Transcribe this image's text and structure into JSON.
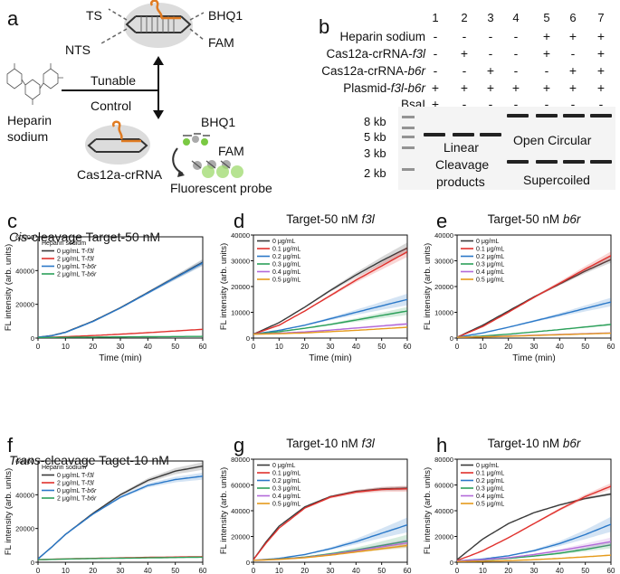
{
  "panel_a": {
    "letter": "a",
    "ts": "TS",
    "nts": "NTS",
    "bhq1_top": "BHQ1",
    "fam_top": "FAM",
    "heparin_line1": "Heparin",
    "heparin_line2": "sodium",
    "tunable": "Tunable",
    "control": "Control",
    "cas12a_label": "Cas12a-crRNA",
    "bhq1_bottom": "BHQ1",
    "fam_bottom": "FAM",
    "probe_label": "Fluorescent probe",
    "colors": {
      "crRNA": "#e07b22",
      "dna": "#333333",
      "fam": "#7ac943",
      "blob": "#dcdcdc"
    }
  },
  "panel_b": {
    "letter": "b",
    "lane_numbers": [
      "1",
      "2",
      "3",
      "4",
      "5",
      "6",
      "7"
    ],
    "rows": [
      {
        "label": "Heparin sodium",
        "italic": "",
        "marks": [
          "-",
          "-",
          "-",
          "-",
          "+",
          "+",
          "+"
        ]
      },
      {
        "label": "Cas12a-crRNA-",
        "italic": "f3l",
        "marks": [
          "-",
          "+",
          "-",
          "-",
          "+",
          "-",
          "+"
        ]
      },
      {
        "label": "Cas12a-crRNA-",
        "italic": "b6r",
        "marks": [
          "-",
          "-",
          "+",
          "-",
          "-",
          "+",
          "+"
        ]
      },
      {
        "label": "Plasmid-",
        "italic": "f3l-b6r",
        "marks": [
          "+",
          "+",
          "+",
          "+",
          "+",
          "+",
          "+"
        ]
      },
      {
        "label": "BsaI",
        "italic": "",
        "marks": [
          "+",
          "-",
          "-",
          "-",
          "-",
          "-",
          "-"
        ]
      }
    ],
    "ladder": [
      "8 kb",
      "5 kb",
      "3 kb",
      "2 kb"
    ],
    "gel_annotations": {
      "linear_1": "Linear",
      "linear_2": "Cleavage",
      "linear_3": "products",
      "open_circular": "Open Circular",
      "supercoiled": "Supercoiled"
    }
  },
  "chart_data": [
    {
      "panel": "c",
      "type": "line",
      "title_italic": "Cis",
      "title_rest": "-cleavage  Target-50 nM",
      "xlabel": "Time (min)",
      "ylabel": "FL intensity (arb. units)",
      "xlim": [
        0,
        60
      ],
      "ylim": [
        0,
        60000
      ],
      "xticks": [
        "0",
        "10",
        "20",
        "30",
        "40",
        "50",
        "60"
      ],
      "yticks": [
        "0",
        "20000",
        "40000",
        "60000"
      ],
      "legend_title": "Heparin sodium",
      "series": [
        {
          "name": "0 μg/mL T-",
          "italic": "f3l",
          "color": "#3a3a3a",
          "band": 0.04,
          "x": [
            0,
            5,
            10,
            20,
            30,
            40,
            50,
            60
          ],
          "values": [
            500,
            1500,
            3500,
            10000,
            18000,
            27000,
            36000,
            45000
          ]
        },
        {
          "name": "2 μg/mL T-",
          "italic": "f3l",
          "color": "#e0312d",
          "band": 0,
          "x": [
            0,
            10,
            20,
            30,
            40,
            50,
            60
          ],
          "values": [
            300,
            800,
            1500,
            2300,
            3200,
            4200,
            5200
          ]
        },
        {
          "name": "0 μg/mL T-",
          "italic": "b6r",
          "color": "#2a78c8",
          "band": 0.04,
          "x": [
            0,
            5,
            10,
            20,
            30,
            40,
            50,
            60
          ],
          "values": [
            500,
            1400,
            3300,
            9800,
            17800,
            26700,
            35700,
            44500
          ]
        },
        {
          "name": "2 μg/mL T-",
          "italic": "b6r",
          "color": "#2ca05a",
          "band": 0,
          "x": [
            0,
            10,
            20,
            30,
            40,
            50,
            60
          ],
          "values": [
            300,
            450,
            600,
            700,
            800,
            900,
            1000
          ]
        }
      ]
    },
    {
      "panel": "d",
      "type": "line",
      "title_italic": "",
      "title_pre": "Target-50 nM ",
      "title_tail": "f3l",
      "xlabel": "Time (min)",
      "ylabel": "FL intensity (arb. units)",
      "xlim": [
        0,
        60
      ],
      "ylim": [
        0,
        40000
      ],
      "xticks": [
        "0",
        "10",
        "20",
        "30",
        "40",
        "50",
        "60"
      ],
      "yticks": [
        "0",
        "10000",
        "20000",
        "30000",
        "40000"
      ],
      "legend_title": "",
      "series": [
        {
          "name": "0 μg/mL",
          "italic": "",
          "color": "#3a3a3a",
          "band": 0.06,
          "x": [
            0,
            10,
            20,
            30,
            40,
            50,
            60
          ],
          "values": [
            1500,
            6000,
            12000,
            18500,
            24500,
            30000,
            35000
          ]
        },
        {
          "name": "0.1 μg/mL",
          "italic": "",
          "color": "#e0312d",
          "band": 0.06,
          "x": [
            0,
            10,
            20,
            30,
            40,
            50,
            60
          ],
          "values": [
            1500,
            5000,
            10500,
            16500,
            22500,
            28000,
            33500
          ]
        },
        {
          "name": "0.2 μg/mL",
          "italic": "",
          "color": "#2a78c8",
          "band": 0.15,
          "x": [
            0,
            10,
            20,
            30,
            40,
            50,
            60
          ],
          "values": [
            1500,
            3000,
            5000,
            7500,
            10000,
            12500,
            15000
          ]
        },
        {
          "name": "0.3 μg/mL",
          "italic": "",
          "color": "#2ca05a",
          "band": 0.15,
          "x": [
            0,
            10,
            20,
            30,
            40,
            50,
            60
          ],
          "values": [
            1500,
            2500,
            3800,
            5300,
            7000,
            8800,
            10500
          ]
        },
        {
          "name": "0.4 μg/mL",
          "italic": "",
          "color": "#b36ad9",
          "band": 0.1,
          "x": [
            0,
            10,
            20,
            30,
            40,
            50,
            60
          ],
          "values": [
            1500,
            1900,
            2400,
            3100,
            3900,
            4700,
            5500
          ]
        },
        {
          "name": "0.5 μg/mL",
          "italic": "",
          "color": "#e59a1a",
          "band": 0.05,
          "x": [
            0,
            10,
            20,
            30,
            40,
            50,
            60
          ],
          "values": [
            1500,
            1700,
            2000,
            2500,
            3000,
            3600,
            4200
          ]
        }
      ]
    },
    {
      "panel": "e",
      "type": "line",
      "title_italic": "",
      "title_pre": "Target-50 nM ",
      "title_tail": "b6r",
      "xlabel": "Time (min)",
      "ylabel": "FL intensity (arb. units)",
      "xlim": [
        0,
        60
      ],
      "ylim": [
        0,
        40000
      ],
      "xticks": [
        "0",
        "10",
        "20",
        "30",
        "40",
        "50",
        "60"
      ],
      "yticks": [
        "0",
        "10000",
        "20000",
        "30000",
        "40000"
      ],
      "legend_title": "",
      "series": [
        {
          "name": "0 μg/mL",
          "italic": "",
          "color": "#3a3a3a",
          "band": 0.04,
          "x": [
            0,
            10,
            20,
            30,
            40,
            50,
            60
          ],
          "values": [
            300,
            5000,
            10500,
            16000,
            21000,
            26000,
            30500
          ]
        },
        {
          "name": "0.1 μg/mL",
          "italic": "",
          "color": "#e0312d",
          "band": 0.05,
          "x": [
            0,
            10,
            20,
            30,
            40,
            50,
            60
          ],
          "values": [
            300,
            4500,
            10000,
            15800,
            21300,
            26800,
            32000
          ]
        },
        {
          "name": "0.2 μg/mL",
          "italic": "",
          "color": "#2a78c8",
          "band": 0.12,
          "x": [
            0,
            10,
            20,
            30,
            40,
            50,
            60
          ],
          "values": [
            300,
            2000,
            4200,
            6600,
            9000,
            11500,
            14000
          ]
        },
        {
          "name": "0.3 μg/mL",
          "italic": "",
          "color": "#2ca05a",
          "band": 0.08,
          "x": [
            0,
            10,
            20,
            30,
            40,
            50,
            60
          ],
          "values": [
            300,
            800,
            1500,
            2400,
            3300,
            4300,
            5300
          ]
        },
        {
          "name": "0.4 μg/mL",
          "italic": "",
          "color": "#b36ad9",
          "band": 0.05,
          "x": [
            0,
            10,
            20,
            30,
            40,
            50,
            60
          ],
          "values": [
            300,
            500,
            800,
            1100,
            1400,
            1700,
            2000
          ]
        },
        {
          "name": "0.5 μg/mL",
          "italic": "",
          "color": "#e59a1a",
          "band": 0.05,
          "x": [
            0,
            10,
            20,
            30,
            40,
            50,
            60
          ],
          "values": [
            300,
            450,
            700,
            1000,
            1300,
            1600,
            1900
          ]
        }
      ]
    },
    {
      "panel": "f",
      "type": "line",
      "title_italic": "Trans",
      "title_rest": "-cleavage Taget-10 nM",
      "xlabel": "Time (min)",
      "ylabel": "FL intensity (arb. units)",
      "xlim": [
        0,
        60
      ],
      "ylim": [
        0,
        60000
      ],
      "xticks": [
        "0",
        "10",
        "20",
        "30",
        "40",
        "50",
        "60"
      ],
      "yticks": [
        "0",
        "20000",
        "40000",
        "60000"
      ],
      "legend_title": "Heparin sodium",
      "series": [
        {
          "name": "0 μg/mL T-",
          "italic": "f3l",
          "color": "#3a3a3a",
          "band": 0.04,
          "x": [
            0,
            5,
            10,
            20,
            30,
            40,
            50,
            60
          ],
          "values": [
            2000,
            9000,
            16500,
            29000,
            40000,
            48500,
            54000,
            57000
          ]
        },
        {
          "name": "2 μg/mL T-",
          "italic": "f3l",
          "color": "#e0312d",
          "band": 0,
          "x": [
            0,
            10,
            20,
            30,
            40,
            50,
            60
          ],
          "values": [
            1500,
            2000,
            2300,
            2600,
            2900,
            3100,
            3300
          ]
        },
        {
          "name": "0 μg/mL T-",
          "italic": "b6r",
          "color": "#2a78c8",
          "band": 0.04,
          "x": [
            0,
            5,
            10,
            20,
            30,
            40,
            50,
            60
          ],
          "values": [
            2000,
            9000,
            16500,
            28500,
            38500,
            45500,
            49000,
            51000
          ]
        },
        {
          "name": "2 μg/mL T-",
          "italic": "b6r",
          "color": "#2ca05a",
          "band": 0,
          "x": [
            0,
            10,
            20,
            30,
            40,
            50,
            60
          ],
          "values": [
            1500,
            1900,
            2200,
            2400,
            2600,
            2800,
            3000
          ]
        }
      ]
    },
    {
      "panel": "g",
      "type": "line",
      "title_italic": "",
      "title_pre": "Target-10 nM ",
      "title_tail": "f3l",
      "xlabel": "Time (min)",
      "ylabel": "FL intensity (arb. units)",
      "xlim": [
        0,
        60
      ],
      "ylim": [
        0,
        80000
      ],
      "xticks": [
        "0",
        "10",
        "20",
        "30",
        "40",
        "50",
        "60"
      ],
      "yticks": [
        "0",
        "20000",
        "40000",
        "60000",
        "80000"
      ],
      "legend_title": "",
      "series": [
        {
          "name": "0 μg/mL",
          "italic": "",
          "color": "#3a3a3a",
          "band": 0.03,
          "x": [
            0,
            5,
            10,
            20,
            30,
            40,
            50,
            60
          ],
          "values": [
            2000,
            16000,
            28000,
            43000,
            51000,
            55000,
            57000,
            57500
          ]
        },
        {
          "name": "0.1 μg/mL",
          "italic": "",
          "color": "#e0312d",
          "band": 0.04,
          "x": [
            0,
            5,
            10,
            20,
            30,
            40,
            50,
            60
          ],
          "values": [
            2000,
            15000,
            26500,
            42000,
            50500,
            54500,
            56500,
            57000
          ]
        },
        {
          "name": "0.2 μg/mL",
          "italic": "",
          "color": "#2a78c8",
          "band": 0.2,
          "x": [
            0,
            10,
            20,
            30,
            40,
            50,
            60
          ],
          "values": [
            1500,
            3000,
            6000,
            10500,
            16000,
            22500,
            29000
          ]
        },
        {
          "name": "0.3 μg/mL",
          "italic": "",
          "color": "#2ca05a",
          "band": 0.3,
          "x": [
            0,
            10,
            20,
            30,
            40,
            50,
            60
          ],
          "values": [
            1500,
            2500,
            4000,
            6500,
            9500,
            13000,
            16500
          ]
        },
        {
          "name": "0.4 μg/mL",
          "italic": "",
          "color": "#b36ad9",
          "band": 0.2,
          "x": [
            0,
            10,
            20,
            30,
            40,
            50,
            60
          ],
          "values": [
            1500,
            2300,
            3700,
            6000,
            8800,
            12000,
            15000
          ]
        },
        {
          "name": "0.5 μg/mL",
          "italic": "",
          "color": "#e59a1a",
          "band": 0.15,
          "x": [
            0,
            10,
            20,
            30,
            40,
            50,
            60
          ],
          "values": [
            1500,
            2200,
            3500,
            5500,
            8000,
            10500,
            13000
          ]
        }
      ]
    },
    {
      "panel": "h",
      "type": "line",
      "title_italic": "",
      "title_pre": "Target-10 nM ",
      "title_tail": "b6r",
      "xlabel": "Time (min)",
      "ylabel": "FL intensity (arb. units)",
      "xlim": [
        0,
        60
      ],
      "ylim": [
        0,
        80000
      ],
      "xticks": [
        "0",
        "10",
        "20",
        "30",
        "40",
        "50",
        "60"
      ],
      "yticks": [
        "0",
        "20000",
        "40000",
        "60000",
        "80000"
      ],
      "legend_title": "",
      "series": [
        {
          "name": "0 μg/mL",
          "italic": "",
          "color": "#3a3a3a",
          "band": 0.02,
          "x": [
            0,
            5,
            10,
            20,
            30,
            40,
            50,
            60
          ],
          "values": [
            2000,
            10000,
            18000,
            30000,
            38500,
            44500,
            49500,
            53000
          ]
        },
        {
          "name": "0.1 μg/mL",
          "italic": "",
          "color": "#e0312d",
          "band": 0.04,
          "x": [
            0,
            5,
            10,
            20,
            30,
            40,
            50,
            60
          ],
          "values": [
            1500,
            5000,
            9000,
            19000,
            30000,
            41000,
            51000,
            59000
          ]
        },
        {
          "name": "0.2 μg/mL",
          "italic": "",
          "color": "#2a78c8",
          "band": 0.2,
          "x": [
            0,
            10,
            20,
            30,
            40,
            50,
            60
          ],
          "values": [
            1000,
            2500,
            5000,
            9000,
            14500,
            21500,
            29500
          ]
        },
        {
          "name": "0.3 μg/mL",
          "italic": "",
          "color": "#2ca05a",
          "band": 0.2,
          "x": [
            0,
            10,
            20,
            30,
            40,
            50,
            60
          ],
          "values": [
            1000,
            1800,
            3000,
            4800,
            7000,
            10000,
            13500
          ]
        },
        {
          "name": "0.4 μg/mL",
          "italic": "",
          "color": "#b36ad9",
          "band": 0.2,
          "x": [
            0,
            10,
            20,
            30,
            40,
            50,
            60
          ],
          "values": [
            1000,
            2000,
            3500,
            6000,
            9000,
            12500,
            16000
          ]
        },
        {
          "name": "0.5 μg/mL",
          "italic": "",
          "color": "#e59a1a",
          "band": 0.1,
          "x": [
            0,
            10,
            20,
            30,
            40,
            50,
            60
          ],
          "values": [
            500,
            800,
            1200,
            2000,
            3000,
            4200,
            5500
          ]
        }
      ]
    }
  ]
}
